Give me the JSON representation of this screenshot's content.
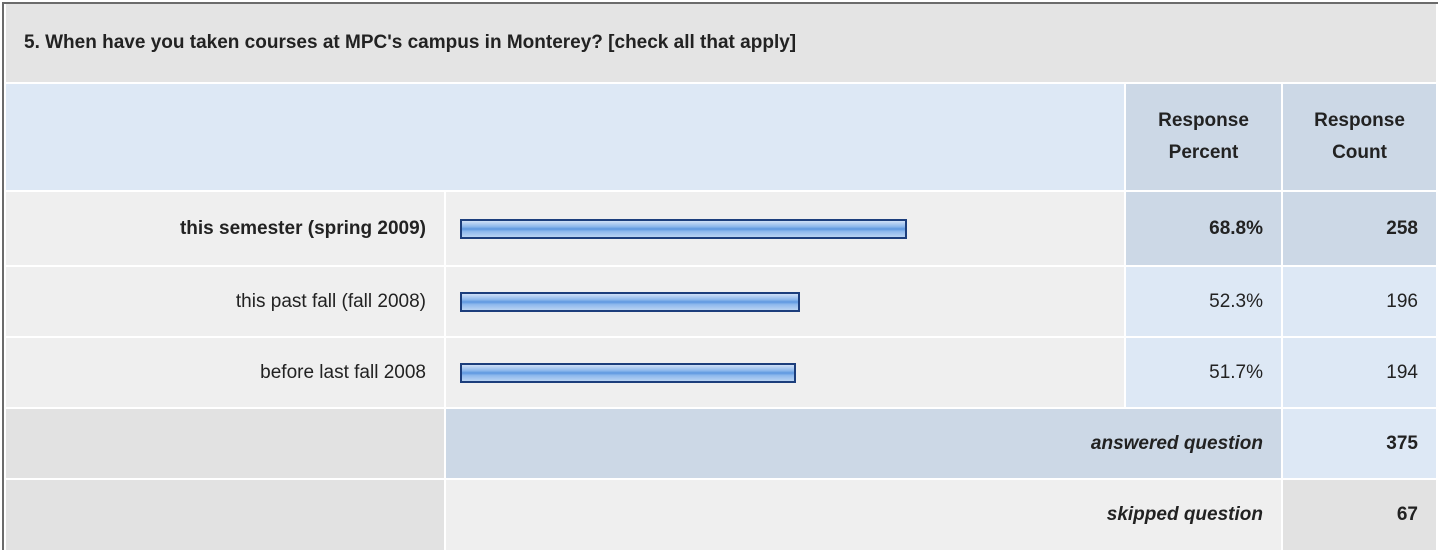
{
  "title": "5. When have you taken courses at MPC's campus in Monterey? [check all that apply]",
  "header": {
    "percent": "Response Percent",
    "count": "Response Count"
  },
  "rows": [
    {
      "label": "this semester (spring 2009)",
      "percent": 68.8,
      "percent_label": "68.8%",
      "count": 258
    },
    {
      "label": "this past fall (fall 2008)",
      "percent": 52.3,
      "percent_label": "52.3%",
      "count": 196
    },
    {
      "label": "before last fall 2008",
      "percent": 51.7,
      "percent_label": "51.7%",
      "count": 194
    }
  ],
  "answered": {
    "label": "answered question",
    "count": 375
  },
  "skipped": {
    "label": "skipped question",
    "count": 67
  }
}
